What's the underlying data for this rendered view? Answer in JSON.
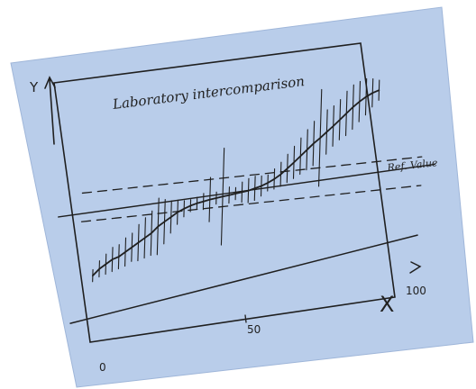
{
  "colors": {
    "paper": "#b9cdea",
    "paper_edge": "#9fb6d9",
    "ink": "#1f1f1f"
  },
  "chart_data": {
    "type": "line",
    "title": "Laboratory intercomparison",
    "xlabel": "X",
    "ylabel": "Y",
    "xlim": [
      0,
      100
    ],
    "ylim": [
      -2.2,
      2.6
    ],
    "x_ticks": [
      {
        "value": 0,
        "label": "0"
      },
      {
        "value": 50,
        "label": "50"
      },
      {
        "value": 100,
        "label": "100"
      }
    ],
    "reference": {
      "label": "Ref. Value",
      "value": 0,
      "band_upper": 0.38,
      "band_lower": -0.33
    },
    "series": [
      {
        "points": [
          {
            "x": 4,
            "y": -1.7,
            "err": 0.15
          },
          {
            "x": 6,
            "y": -1.55,
            "err": 0.2
          },
          {
            "x": 8,
            "y": -1.45,
            "err": 0.25
          },
          {
            "x": 10,
            "y": -1.35,
            "err": 0.3
          },
          {
            "x": 12,
            "y": -1.3,
            "err": 0.3
          },
          {
            "x": 14,
            "y": -1.2,
            "err": 0.35
          },
          {
            "x": 16,
            "y": -1.1,
            "err": 0.35
          },
          {
            "x": 18,
            "y": -1.0,
            "err": 0.45
          },
          {
            "x": 20,
            "y": -0.9,
            "err": 0.5
          },
          {
            "x": 22,
            "y": -0.8,
            "err": 0.55
          },
          {
            "x": 24,
            "y": -0.65,
            "err": 0.7
          },
          {
            "x": 26,
            "y": -0.55,
            "err": 0.55
          },
          {
            "x": 28,
            "y": -0.45,
            "err": 0.4
          },
          {
            "x": 30,
            "y": -0.35,
            "err": 0.3
          },
          {
            "x": 32,
            "y": -0.28,
            "err": 0.2
          },
          {
            "x": 34,
            "y": -0.22,
            "err": 0.15
          },
          {
            "x": 36,
            "y": -0.18,
            "err": 0.15
          },
          {
            "x": 38,
            "y": -0.15,
            "err": 0.2
          },
          {
            "x": 40,
            "y": -0.12,
            "err": 0.55
          },
          {
            "x": 42,
            "y": -0.1,
            "err": 0.15
          },
          {
            "x": 44,
            "y": -0.08,
            "err": 1.2
          },
          {
            "x": 46,
            "y": -0.06,
            "err": 0.2
          },
          {
            "x": 48,
            "y": -0.04,
            "err": 0.15
          },
          {
            "x": 50,
            "y": -0.02,
            "err": 0.25
          },
          {
            "x": 52,
            "y": 0.0,
            "err": 0.3
          },
          {
            "x": 54,
            "y": 0.04,
            "err": 0.3
          },
          {
            "x": 56,
            "y": 0.08,
            "err": 0.25
          },
          {
            "x": 58,
            "y": 0.14,
            "err": 0.2
          },
          {
            "x": 60,
            "y": 0.22,
            "err": 0.25
          },
          {
            "x": 62,
            "y": 0.32,
            "err": 0.3
          },
          {
            "x": 64,
            "y": 0.45,
            "err": 0.35
          },
          {
            "x": 66,
            "y": 0.58,
            "err": 0.4
          },
          {
            "x": 68,
            "y": 0.72,
            "err": 0.45
          },
          {
            "x": 70,
            "y": 0.86,
            "err": 0.5
          },
          {
            "x": 72,
            "y": 1.0,
            "err": 0.55
          },
          {
            "x": 74,
            "y": 1.12,
            "err": 1.2
          },
          {
            "x": 76,
            "y": 1.25,
            "err": 0.55
          },
          {
            "x": 78,
            "y": 1.38,
            "err": 0.5
          },
          {
            "x": 80,
            "y": 1.52,
            "err": 0.5
          },
          {
            "x": 82,
            "y": 1.66,
            "err": 0.55
          },
          {
            "x": 84,
            "y": 1.8,
            "err": 0.55
          },
          {
            "x": 86,
            "y": 1.92,
            "err": 0.5
          },
          {
            "x": 88,
            "y": 2.02,
            "err": 0.45
          },
          {
            "x": 90,
            "y": 2.1,
            "err": 0.35
          },
          {
            "x": 92,
            "y": 2.15,
            "err": 0.25
          }
        ]
      }
    ],
    "grid": false
  }
}
